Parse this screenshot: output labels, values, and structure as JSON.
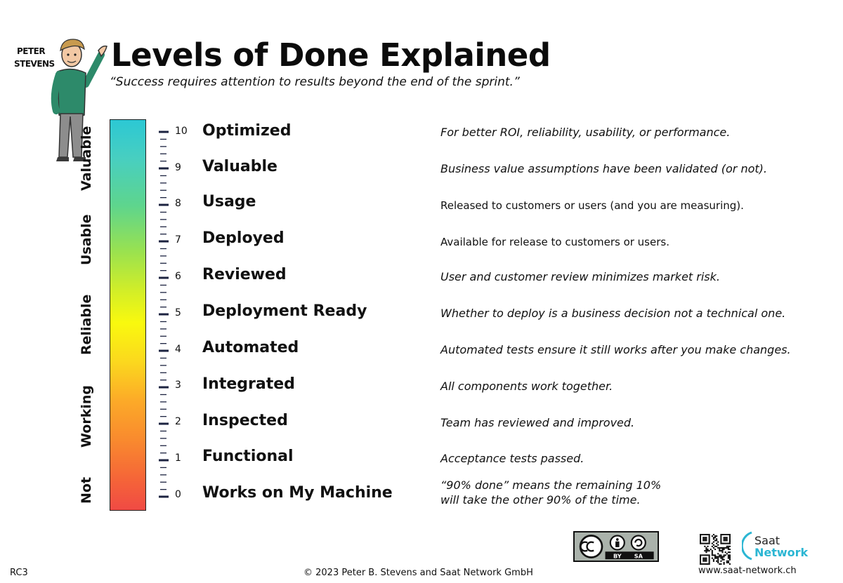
{
  "title": "Levels of Done Explained",
  "subtitle": "“Success requires attention to results beyond the end of the sprint.”",
  "author_label": [
    "PETER",
    "STEVENS"
  ],
  "categories": [
    "Valuable",
    "Usable",
    "Reliable",
    "Working",
    "Not"
  ],
  "gradient_colors": [
    "#2cc8d4",
    "#9be24e",
    "#f9f90e",
    "#fcaa28",
    "#f04a44"
  ],
  "levels": [
    {
      "num": "10",
      "name": "Optimized",
      "desc": "For better ROI, reliability, usability, or performance."
    },
    {
      "num": "9",
      "name": "Valuable",
      "desc": "Business value assumptions have been validated (or not)."
    },
    {
      "num": "8",
      "name": "Usage",
      "desc": "Released to customers or users (and you are measuring)."
    },
    {
      "num": "7",
      "name": "Deployed",
      "desc": "Available for release to customers or users."
    },
    {
      "num": "6",
      "name": "Reviewed",
      "desc": "User and customer review minimizes market risk."
    },
    {
      "num": "5",
      "name": "Deployment Ready",
      "desc": "Whether to deploy is a business decision not a technical one."
    },
    {
      "num": "4",
      "name": "Automated",
      "desc": "Automated tests ensure it still works after you make changes."
    },
    {
      "num": "3",
      "name": "Integrated",
      "desc": "All components work together."
    },
    {
      "num": "2",
      "name": "Inspected",
      "desc": "Team has reviewed and improved."
    },
    {
      "num": "1",
      "name": "Functional",
      "desc": "Acceptance tests passed."
    },
    {
      "num": "0",
      "name": "Works on My Machine",
      "desc": "“90% done” means the remaining 10% will take the other 90% of the time."
    }
  ],
  "footer": {
    "version": "RC3",
    "copyright": "© 2023 Peter B. Stevens and Saat Network GmbH",
    "license_labels": [
      "BY",
      "SA"
    ],
    "license_icon": "creative-commons-by-sa-icon",
    "qr_icon": "qr-code-icon",
    "logo_line1": "Saat",
    "logo_line2": "Network",
    "website": "www.saat-network.ch"
  }
}
